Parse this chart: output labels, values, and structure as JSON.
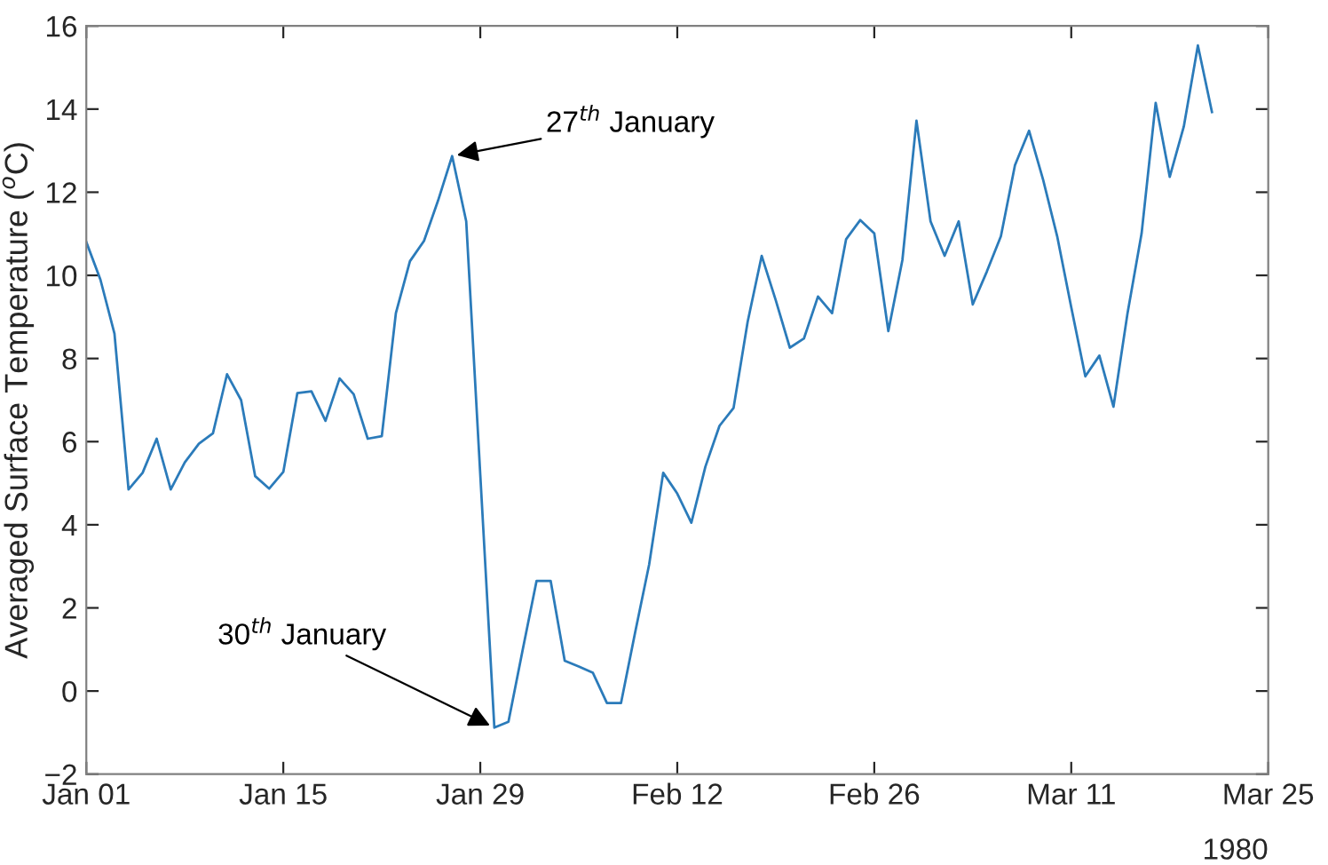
{
  "chart_data": {
    "type": "line",
    "ylabel": "Averaged Surface Temperature ($^{o}$C)",
    "x": [
      "1980-01-01",
      "1980-01-02",
      "1980-01-03",
      "1980-01-04",
      "1980-01-05",
      "1980-01-06",
      "1980-01-07",
      "1980-01-08",
      "1980-01-09",
      "1980-01-10",
      "1980-01-11",
      "1980-01-12",
      "1980-01-13",
      "1980-01-14",
      "1980-01-15",
      "1980-01-16",
      "1980-01-17",
      "1980-01-18",
      "1980-01-19",
      "1980-01-20",
      "1980-01-21",
      "1980-01-22",
      "1980-01-23",
      "1980-01-24",
      "1980-01-25",
      "1980-01-26",
      "1980-01-27",
      "1980-01-28",
      "1980-01-29",
      "1980-01-30",
      "1980-01-31",
      "1980-02-01",
      "1980-02-02",
      "1980-02-03",
      "1980-02-04",
      "1980-02-05",
      "1980-02-06",
      "1980-02-07",
      "1980-02-08",
      "1980-02-09",
      "1980-02-10",
      "1980-02-11",
      "1980-02-12",
      "1980-02-13",
      "1980-02-14",
      "1980-02-15",
      "1980-02-16",
      "1980-02-17",
      "1980-02-18",
      "1980-02-19",
      "1980-02-20",
      "1980-02-21",
      "1980-02-22",
      "1980-02-23",
      "1980-02-24",
      "1980-02-25",
      "1980-02-26",
      "1980-02-27",
      "1980-02-28",
      "1980-02-29",
      "1980-03-01",
      "1980-03-02",
      "1980-03-03",
      "1980-03-04",
      "1980-03-05",
      "1980-03-06",
      "1980-03-07",
      "1980-03-08",
      "1980-03-09",
      "1980-03-10",
      "1980-03-11",
      "1980-03-12",
      "1980-03-13",
      "1980-03-14",
      "1980-03-15",
      "1980-03-16",
      "1980-03-17",
      "1980-03-18",
      "1980-03-19",
      "1980-03-20",
      "1980-03-21"
    ],
    "series": [
      {
        "color": "#2b7bba",
        "values": [
          10.8,
          9.9,
          8.6,
          4.85,
          5.25,
          6.07,
          4.85,
          5.5,
          5.95,
          6.2,
          7.62,
          7.0,
          5.17,
          4.87,
          5.27,
          7.17,
          7.21,
          6.5,
          7.52,
          7.14,
          6.07,
          6.13,
          9.09,
          10.34,
          10.83,
          11.8,
          12.87,
          11.3,
          5.2,
          -0.88,
          -0.74,
          0.97,
          2.65,
          2.65,
          0.73,
          0.59,
          0.44,
          -0.29,
          -0.29,
          1.4,
          3.04,
          5.25,
          4.75,
          4.05,
          5.4,
          6.38,
          6.81,
          8.88,
          10.47,
          9.4,
          8.26,
          8.48,
          9.49,
          9.09,
          10.87,
          11.33,
          11.01,
          8.66,
          10.37,
          13.72,
          11.3,
          10.47,
          11.3,
          9.3,
          10.09,
          10.94,
          12.65,
          13.48,
          12.3,
          10.94,
          9.23,
          7.57,
          8.07,
          6.84,
          9.09,
          11.01,
          14.15,
          12.37,
          13.58,
          15.53,
          13.93
        ]
      }
    ],
    "xlim": [
      "1980-01-01",
      "1980-03-25"
    ],
    "xticks": [
      {
        "value": "1980-01-01",
        "label": "Jan 01"
      },
      {
        "value": "1980-01-15",
        "label": "Jan 15"
      },
      {
        "value": "1980-01-29",
        "label": "Jan 29"
      },
      {
        "value": "1980-02-12",
        "label": "Feb 12"
      },
      {
        "value": "1980-02-26",
        "label": "Feb 26"
      },
      {
        "value": "1980-03-11",
        "label": "Mar 11"
      },
      {
        "value": "1980-03-25",
        "label": "Mar 25"
      }
    ],
    "ylim": [
      -2,
      16
    ],
    "yticks": [
      -2,
      0,
      2,
      4,
      6,
      8,
      10,
      12,
      14,
      16
    ],
    "annotations": [
      {
        "text": "27$^{th}$ January",
        "x": "1980-01-27",
        "y": 12.87
      },
      {
        "text": "30$^{th}$ January",
        "x": "1980-01-30",
        "y": -0.88
      },
      "1980"
    ],
    "grid": false,
    "marker": "none",
    "line_style": "solid"
  }
}
